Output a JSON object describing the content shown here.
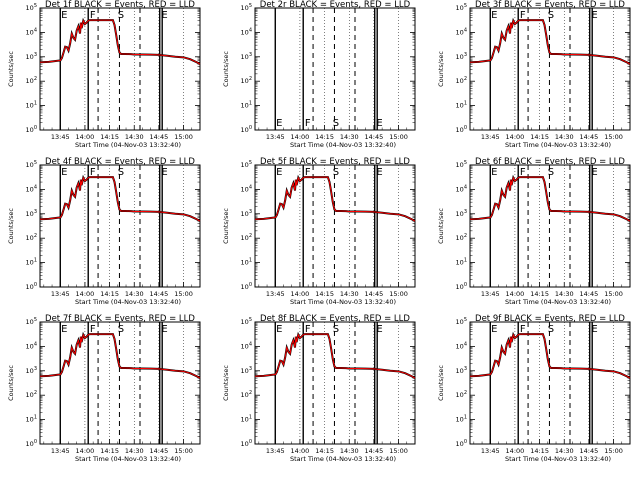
{
  "chart_data": [
    {
      "type": "line",
      "title": "Det 1f BLACK = Events, RED = LLD",
      "ylabel": "Counts/sec",
      "xlabel": "Start Time (04-Nov-03 13:32:40)",
      "empty": false
    },
    {
      "type": "line",
      "title": "Det 2r BLACK = Events, RED = LLD",
      "ylabel": "Counts/sec",
      "xlabel": "Start Time (04-Nov-03 13:32:40)",
      "empty": true
    },
    {
      "type": "line",
      "title": "Det 3f BLACK = Events, RED = LLD",
      "ylabel": "Counts/sec",
      "xlabel": "Start Time (04-Nov-03 13:32:40)",
      "empty": false
    },
    {
      "type": "line",
      "title": "Det 4f BLACK = Events, RED = LLD",
      "ylabel": "Counts/sec",
      "xlabel": "Start Time (04-Nov-03 13:32:40)",
      "empty": false
    },
    {
      "type": "line",
      "title": "Det 5f BLACK = Events, RED = LLD",
      "ylabel": "Counts/sec",
      "xlabel": "Start Time (04-Nov-03 13:32:40)",
      "empty": false
    },
    {
      "type": "line",
      "title": "Det 6f BLACK = Events, RED = LLD",
      "ylabel": "Counts/sec",
      "xlabel": "Start Time (04-Nov-03 13:32:40)",
      "empty": false
    },
    {
      "type": "line",
      "title": "Det 7f BLACK = Events, RED = LLD",
      "ylabel": "Counts/sec",
      "xlabel": "Start Time (04-Nov-03 13:32:40)",
      "empty": false
    },
    {
      "type": "line",
      "title": "Det 8f BLACK = Events, RED = LLD",
      "ylabel": "Counts/sec",
      "xlabel": "Start Time (04-Nov-03 13:32:40)",
      "empty": false
    },
    {
      "type": "line",
      "title": "Det 9f BLACK = Events, RED = LLD",
      "ylabel": "Counts/sec",
      "xlabel": "Start Time (04-Nov-03 13:32:40)",
      "empty": false
    }
  ],
  "shared": {
    "x_ticks": [
      "13:45",
      "14:00",
      "14:15",
      "14:30",
      "14:45",
      "15:00"
    ],
    "x_tick_minutes": [
      45,
      60,
      75,
      90,
      105,
      120
    ],
    "xlim_minutes": [
      32.67,
      130
    ],
    "y_tick_exponents": [
      0,
      1,
      2,
      3,
      4,
      5
    ],
    "y_scale": "log",
    "ylim": [
      1,
      100000
    ],
    "solid_lines_minutes": [
      45,
      62,
      105.5,
      107
    ],
    "dashed_lines_minutes": [
      68,
      81,
      93.5
    ],
    "markers": [
      {
        "text": "E",
        "minute": 45.5
      },
      {
        "text": "F",
        "minute": 63
      },
      {
        "text": "S",
        "minute": 80
      },
      {
        "text": "E",
        "minute": 106.5
      }
    ],
    "series": [
      {
        "name": "Events",
        "color": "#000000"
      },
      {
        "name": "LLD",
        "color": "#ff0000"
      }
    ],
    "light_curve": [
      [
        32.67,
        600
      ],
      [
        38,
        620
      ],
      [
        44,
        700
      ],
      [
        45,
        700
      ],
      [
        46,
        900
      ],
      [
        47,
        1500
      ],
      [
        48,
        2600
      ],
      [
        49,
        2500
      ],
      [
        50,
        1800
      ],
      [
        51,
        3500
      ],
      [
        52,
        9000
      ],
      [
        53,
        6000
      ],
      [
        54,
        5000
      ],
      [
        55,
        12000
      ],
      [
        56,
        18000
      ],
      [
        57,
        9000
      ],
      [
        57.5,
        25000
      ],
      [
        58,
        15000
      ],
      [
        59,
        30000
      ],
      [
        60,
        22000
      ],
      [
        61,
        25000
      ],
      [
        62,
        30000
      ],
      [
        63,
        32000
      ],
      [
        64,
        32000
      ],
      [
        70,
        32000
      ],
      [
        76,
        32000
      ],
      [
        77,
        32000
      ],
      [
        78,
        20000
      ],
      [
        79,
        8000
      ],
      [
        80,
        3000
      ],
      [
        81,
        1500
      ],
      [
        82,
        1300
      ],
      [
        85,
        1300
      ],
      [
        88,
        1280
      ],
      [
        90,
        1250
      ],
      [
        95,
        1250
      ],
      [
        100,
        1230
      ],
      [
        105,
        1200
      ],
      [
        110,
        1100
      ],
      [
        115,
        1000
      ],
      [
        120,
        950
      ],
      [
        124,
        800
      ],
      [
        128,
        600
      ],
      [
        130,
        500
      ]
    ]
  }
}
